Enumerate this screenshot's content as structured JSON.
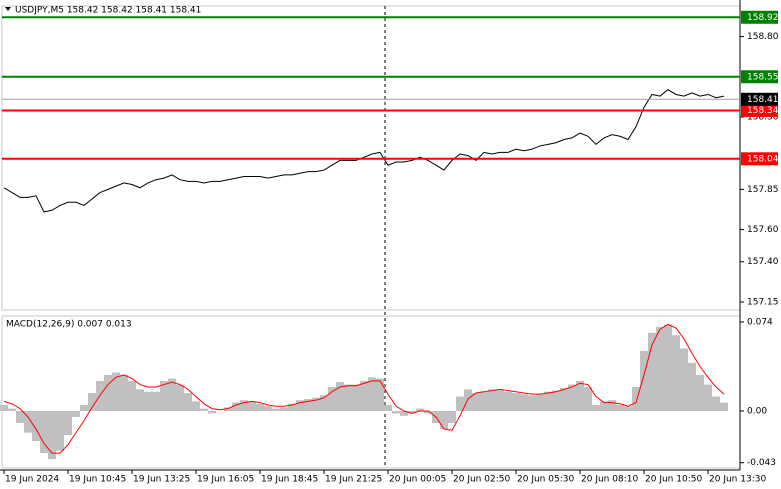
{
  "chart_data": [
    {
      "type": "line",
      "title": "USDJPY,M5 158.42 158.42 158.41 158.41",
      "categories": [
        "19 Jun 2024",
        null,
        null,
        null,
        null,
        null,
        null,
        null,
        "19 Jun 10:45",
        null,
        null,
        null,
        null,
        null,
        null,
        null,
        "19 Jun 13:25",
        null,
        null,
        null,
        null,
        null,
        null,
        null,
        "19 Jun 16:05",
        null,
        null,
        null,
        null,
        null,
        null,
        null,
        "19 Jun 18:45",
        null,
        null,
        null,
        null,
        null,
        null,
        null,
        "19 Jun 21:25",
        null,
        null,
        null,
        null,
        null,
        null,
        null,
        "20 Jun 00:05",
        null,
        null,
        null,
        null,
        null,
        null,
        null,
        "20 Jun 02:50",
        null,
        null,
        null,
        null,
        null,
        null,
        null,
        "20 Jun 05:30",
        null,
        null,
        null,
        null,
        null,
        null,
        null,
        "20 Jun 08:10",
        null,
        null,
        null,
        null,
        null,
        null,
        null,
        "20 Jun 10:50",
        null,
        null,
        null,
        null,
        null,
        null,
        null,
        "20 Jun 13:30",
        null,
        null
      ],
      "series": [
        {
          "color": "#000000",
          "values": [
            157.86,
            157.83,
            157.8,
            157.8,
            157.81,
            157.71,
            157.72,
            157.75,
            157.77,
            157.77,
            157.75,
            157.79,
            157.83,
            157.85,
            157.87,
            157.89,
            157.88,
            157.86,
            157.89,
            157.91,
            157.92,
            157.94,
            157.91,
            157.9,
            157.9,
            157.89,
            157.9,
            157.9,
            157.91,
            157.92,
            157.93,
            157.93,
            157.93,
            157.92,
            157.93,
            157.94,
            157.94,
            157.95,
            157.96,
            157.96,
            157.97,
            158.0,
            158.03,
            158.03,
            158.03,
            158.05,
            158.07,
            158.08,
            158.0,
            158.02,
            158.02,
            158.03,
            158.05,
            158.03,
            158.0,
            157.97,
            158.03,
            158.07,
            158.06,
            158.03,
            158.08,
            158.07,
            158.08,
            158.08,
            158.1,
            158.09,
            158.1,
            158.12,
            158.13,
            158.14,
            158.16,
            158.17,
            158.2,
            158.18,
            158.13,
            158.17,
            158.19,
            158.18,
            158.16,
            158.24,
            158.36,
            158.44,
            158.43,
            158.47,
            158.44,
            158.43,
            158.45,
            158.43,
            158.44,
            158.42,
            158.43
          ]
        }
      ],
      "ylim": [
        157.1,
        158.99
      ],
      "yticks": [
        {
          "value": 158.8,
          "label": "158.80"
        },
        {
          "value": 158.3,
          "label": "158.30"
        },
        157.85,
        {
          "value": 157.6,
          "label": "157.60"
        },
        {
          "value": 157.4,
          "label": "157.40"
        },
        157.15
      ],
      "levels": [
        {
          "value": 158.92,
          "color": "#008000"
        },
        {
          "value": 158.55,
          "color": "#008000"
        },
        {
          "value": 158.34,
          "color": "#ff0000"
        },
        {
          "value": 158.04,
          "color": "#ff0000"
        }
      ],
      "current_price": 158.41
    },
    {
      "type": "bar",
      "title": "MACD(12,26,9) 0.007 0.013",
      "series": [
        {
          "type": "bar",
          "color": "#c0c0c0",
          "values": [
            0.005,
            0.002,
            -0.01,
            -0.018,
            -0.025,
            -0.035,
            -0.04,
            -0.033,
            -0.02,
            -0.005,
            0.005,
            0.015,
            0.025,
            0.03,
            0.032,
            0.03,
            0.025,
            0.018,
            0.016,
            0.016,
            0.025,
            0.027,
            0.022,
            0.015,
            0.008,
            0.002,
            -0.002,
            0.0,
            0.003,
            0.007,
            0.009,
            0.008,
            0.006,
            0.004,
            0.002,
            0.003,
            0.006,
            0.009,
            0.01,
            0.011,
            0.013,
            0.02,
            0.024,
            0.022,
            0.022,
            0.025,
            0.028,
            0.027,
            0.005,
            -0.002,
            -0.004,
            -0.002,
            0.002,
            -0.002,
            -0.01,
            -0.015,
            -0.01,
            0.012,
            0.018,
            0.015,
            0.016,
            0.018,
            0.018,
            0.016,
            0.015,
            0.014,
            0.013,
            0.014,
            0.016,
            0.017,
            0.019,
            0.022,
            0.025,
            0.02,
            0.005,
            0.008,
            0.009,
            0.005,
            0.004,
            0.02,
            0.05,
            0.065,
            0.07,
            0.072,
            0.063,
            0.052,
            0.04,
            0.03,
            0.022,
            0.012,
            0.007
          ]
        },
        {
          "type": "line",
          "color": "#ff0000",
          "values": [
            0.008,
            0.006,
            0.002,
            -0.005,
            -0.015,
            -0.027,
            -0.035,
            -0.035,
            -0.028,
            -0.018,
            -0.008,
            0.003,
            0.013,
            0.022,
            0.028,
            0.03,
            0.027,
            0.022,
            0.02,
            0.02,
            0.022,
            0.024,
            0.022,
            0.018,
            0.012,
            0.006,
            0.002,
            0.001,
            0.002,
            0.005,
            0.007,
            0.008,
            0.007,
            0.005,
            0.004,
            0.004,
            0.005,
            0.007,
            0.008,
            0.009,
            0.011,
            0.016,
            0.02,
            0.021,
            0.021,
            0.023,
            0.025,
            0.025,
            0.014,
            0.004,
            0.0,
            -0.002,
            0.0,
            0.0,
            -0.005,
            -0.015,
            -0.016,
            -0.004,
            0.01,
            0.015,
            0.016,
            0.017,
            0.018,
            0.017,
            0.016,
            0.015,
            0.014,
            0.014,
            0.015,
            0.016,
            0.018,
            0.02,
            0.023,
            0.022,
            0.012,
            0.007,
            0.007,
            0.006,
            0.004,
            0.007,
            0.03,
            0.055,
            0.068,
            0.072,
            0.069,
            0.06,
            0.048,
            0.037,
            0.028,
            0.02,
            0.014
          ]
        }
      ],
      "ylim": [
        -0.0474,
        0.079
      ],
      "yticks": [
        0.074,
        {
          "value": 0,
          "label": "0.00"
        },
        -0.043
      ]
    }
  ]
}
